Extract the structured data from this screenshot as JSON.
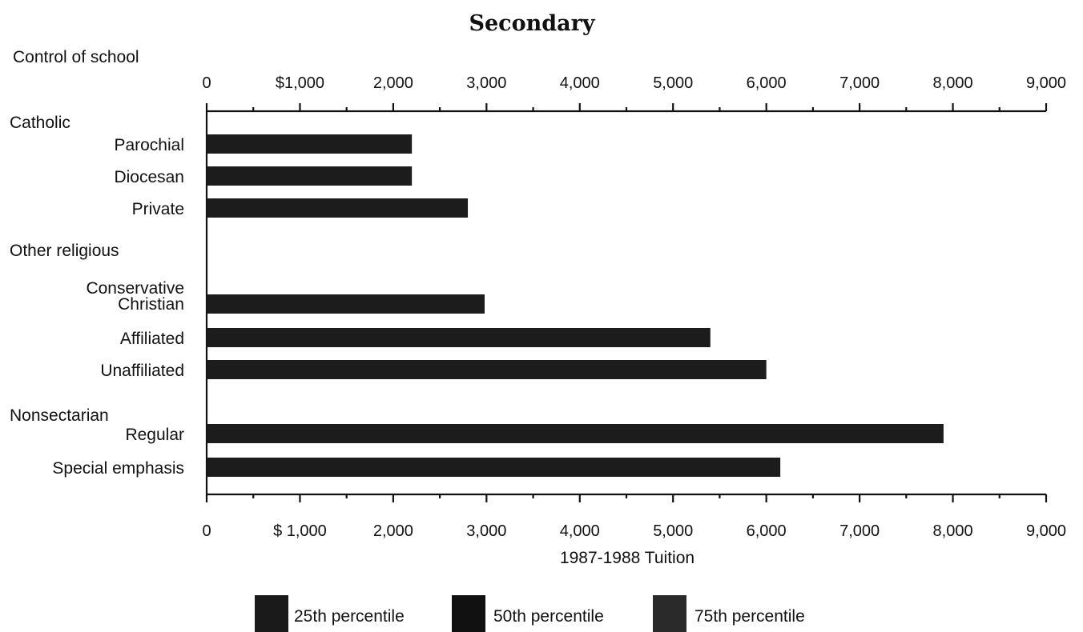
{
  "chart_data": {
    "type": "bar",
    "orientation": "horizontal",
    "title": "Secondary",
    "category_header": "Control of school",
    "xlabel": "1987-1988 Tuition",
    "xlim": [
      0,
      9000
    ],
    "top_tick_labels": [
      "0",
      "$1,000",
      "2,000",
      "3,000",
      "4,000",
      "5,000",
      "6,000",
      "7,000",
      "8,000",
      "9,000"
    ],
    "bottom_tick_labels": [
      "0",
      "$ 1,000",
      "2,000",
      "3,000",
      "4,000",
      "5,000",
      "6,000",
      "7,000",
      "8,000",
      "9,000"
    ],
    "groups": [
      {
        "label": "Catholic",
        "categories": [
          {
            "label": "Parochial",
            "value": 2200
          },
          {
            "label": "Diocesan",
            "value": 2200
          },
          {
            "label": "Private",
            "value": 2800
          }
        ]
      },
      {
        "label": "Other religious",
        "categories": [
          {
            "label": "Conservative Christian",
            "value": 2980
          },
          {
            "label": "Affiliated",
            "value": 5400
          },
          {
            "label": "Unaffiliated",
            "value": 6000
          }
        ]
      },
      {
        "label": "Nonsectarian",
        "categories": [
          {
            "label": "Regular",
            "value": 7900
          },
          {
            "label": "Special emphasis",
            "value": 6150
          }
        ]
      }
    ],
    "legend": {
      "placement": "bottom",
      "entries": [
        {
          "label": "25th percentile",
          "color": "#1a1a1a"
        },
        {
          "label": "50th percentile",
          "color": "#111111"
        },
        {
          "label": "75th percentile",
          "color": "#2a2a2a"
        }
      ]
    },
    "bar_color": "#1c1c1c",
    "grid": false
  }
}
